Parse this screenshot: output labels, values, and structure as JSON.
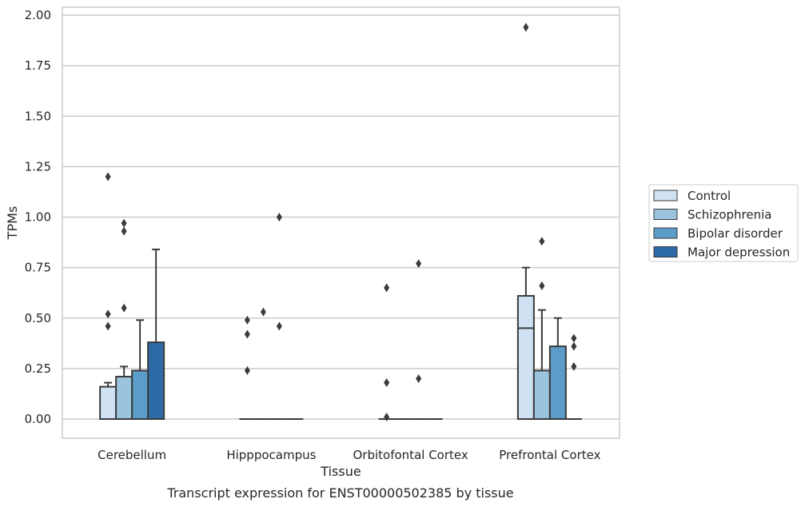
{
  "chart_data": {
    "type": "box",
    "xlabel": "Tissue",
    "ylabel": "TPMs",
    "caption": "Transcript expression for ENST00000502385 by tissue",
    "categories": [
      "Cerebellum",
      "Hipppocampus",
      "Orbitofontal Cortex",
      "Prefrontal Cortex"
    ],
    "yticks": [
      "0.00",
      "0.25",
      "0.50",
      "0.75",
      "1.00",
      "1.25",
      "1.50",
      "1.75",
      "2.00"
    ],
    "ylim": [
      -0.09,
      2.04
    ],
    "grid": true,
    "legend_position": "right",
    "series": [
      {
        "name": "Control",
        "color": "#cfe1f2",
        "boxes": [
          {
            "q1": 0.0,
            "median": 0.0,
            "q3": 0.16,
            "whisker_low": 0.0,
            "whisker_high": 0.18,
            "outliers": [
              0.46,
              0.52,
              1.2
            ]
          },
          {
            "q1": 0.0,
            "median": 0.0,
            "q3": 0.0,
            "whisker_low": 0.0,
            "whisker_high": 0.0,
            "outliers": [
              0.24,
              0.42,
              0.49
            ]
          },
          {
            "q1": 0.0,
            "median": 0.0,
            "q3": 0.0,
            "whisker_low": 0.0,
            "whisker_high": 0.0,
            "outliers": [
              0.01,
              0.18,
              0.65
            ]
          },
          {
            "q1": 0.0,
            "median": 0.45,
            "q3": 0.61,
            "whisker_low": 0.0,
            "whisker_high": 0.75,
            "outliers": [
              1.94
            ]
          }
        ]
      },
      {
        "name": "Schizophrenia",
        "color": "#9ac3de",
        "boxes": [
          {
            "q1": 0.0,
            "median": 0.0,
            "q3": 0.21,
            "whisker_low": 0.0,
            "whisker_high": 0.26,
            "outliers": [
              0.55,
              0.93,
              0.97
            ]
          },
          {
            "q1": 0.0,
            "median": 0.0,
            "q3": 0.0,
            "whisker_low": 0.0,
            "whisker_high": 0.0,
            "outliers": [
              0.53
            ]
          },
          {
            "q1": 0.0,
            "median": 0.0,
            "q3": 0.0,
            "whisker_low": 0.0,
            "whisker_high": 0.0,
            "outliers": []
          },
          {
            "q1": 0.0,
            "median": 0.0,
            "q3": 0.24,
            "whisker_low": 0.0,
            "whisker_high": 0.54,
            "outliers": [
              0.66,
              0.88
            ]
          }
        ]
      },
      {
        "name": "Bipolar disorder",
        "color": "#5b9cc8",
        "boxes": [
          {
            "q1": 0.0,
            "median": 0.0,
            "q3": 0.24,
            "whisker_low": 0.0,
            "whisker_high": 0.49,
            "outliers": []
          },
          {
            "q1": 0.0,
            "median": 0.0,
            "q3": 0.0,
            "whisker_low": 0.0,
            "whisker_high": 0.0,
            "outliers": [
              0.46,
              1.0
            ]
          },
          {
            "q1": 0.0,
            "median": 0.0,
            "q3": 0.0,
            "whisker_low": 0.0,
            "whisker_high": 0.0,
            "outliers": [
              0.2,
              0.77
            ]
          },
          {
            "q1": 0.0,
            "median": 0.0,
            "q3": 0.36,
            "whisker_low": 0.0,
            "whisker_high": 0.5,
            "outliers": []
          }
        ]
      },
      {
        "name": "Major depression",
        "color": "#2c6aa8",
        "boxes": [
          {
            "q1": 0.0,
            "median": 0.0,
            "q3": 0.38,
            "whisker_low": 0.0,
            "whisker_high": 0.84,
            "outliers": []
          },
          {
            "q1": 0.0,
            "median": 0.0,
            "q3": 0.0,
            "whisker_low": 0.0,
            "whisker_high": 0.0,
            "outliers": []
          },
          {
            "q1": 0.0,
            "median": 0.0,
            "q3": 0.0,
            "whisker_low": 0.0,
            "whisker_high": 0.0,
            "outliers": []
          },
          {
            "q1": 0.0,
            "median": 0.0,
            "q3": 0.0,
            "whisker_low": 0.0,
            "whisker_high": 0.0,
            "outliers": [
              0.26,
              0.36,
              0.4
            ]
          }
        ]
      }
    ]
  }
}
